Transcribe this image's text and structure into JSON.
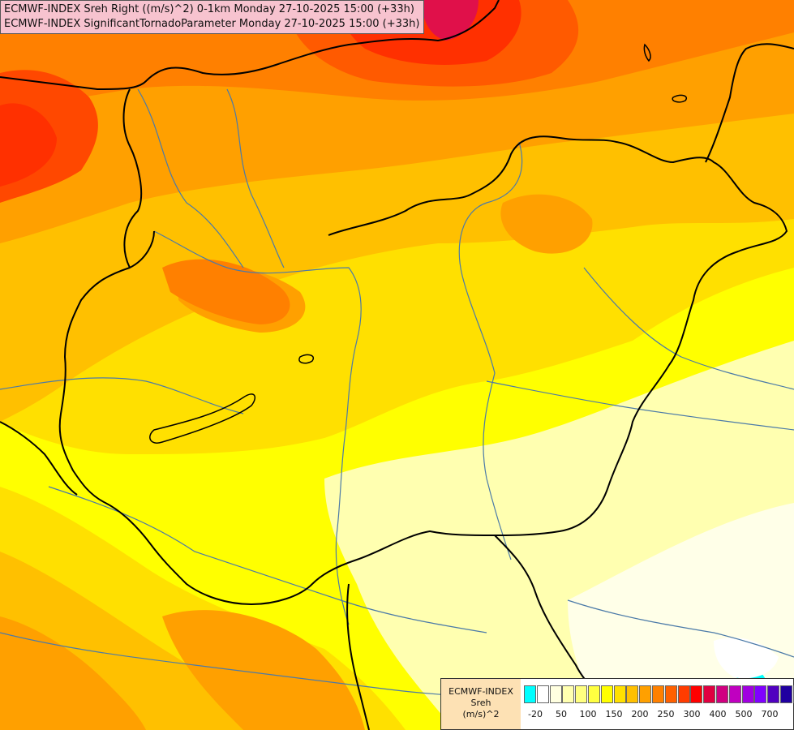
{
  "title": {
    "line1": "ECMWF-INDEX Sreh Right ((m/s)^2) 0-1km Monday 27-10-2025 15:00 (+33h)",
    "line2": "ECMWF-INDEX SignificantTornadoParameter Monday 27-10-2025 15:00 (+33h)"
  },
  "legend": {
    "source": "ECMWF-INDEX",
    "variable": "Sreh",
    "unit": "(m/s)^2",
    "colors": [
      "#00ffff",
      "#ffffff",
      "#ffffe0",
      "#ffffb0",
      "#ffff80",
      "#ffff40",
      "#ffff00",
      "#ffe000",
      "#ffc000",
      "#ffa000",
      "#ff8000",
      "#ff6000",
      "#ff3c00",
      "#ff0000",
      "#e00040",
      "#d00080",
      "#c000c0",
      "#a000e0",
      "#8000ff",
      "#5000c0",
      "#2000a0",
      "#000080"
    ],
    "ticks": [
      "-20",
      "50",
      "100",
      "150",
      "200",
      "250",
      "300",
      "400",
      "500",
      "700"
    ]
  },
  "map_colors": {
    "light_yellow": "#ffffb0",
    "yellow": "#ffff00",
    "gold": "#ffe000",
    "amber": "#ffc000",
    "orange": "#ffa000",
    "deep_orange": "#ff8000",
    "red_orange": "#ff5a00",
    "red": "#ff3000",
    "crimson": "#e0104a",
    "cyan": "#00ffff",
    "border_line": "#000000",
    "river_line": "#4b7aa8"
  }
}
